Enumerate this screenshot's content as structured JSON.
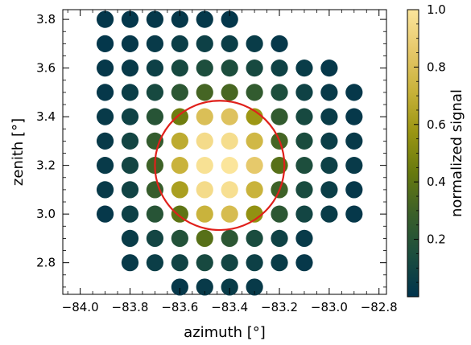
{
  "chart_data": {
    "type": "scatter",
    "xlabel": "azimuth [°]",
    "ylabel": "zenith [°]",
    "xlim": [
      -84.07,
      -82.77
    ],
    "ylim": [
      2.67,
      3.84
    ],
    "xticks": [
      -84.0,
      -83.8,
      -83.6,
      -83.4,
      -83.2,
      -83.0,
      -82.8
    ],
    "xtick_labels": [
      "−84.0",
      "−83.8",
      "−83.6",
      "−83.4",
      "−83.2",
      "−83.0",
      "−82.8"
    ],
    "yticks": [
      2.8,
      3.0,
      3.2,
      3.4,
      3.6,
      3.8
    ],
    "ytick_labels": [
      "2.8",
      "3.0",
      "3.2",
      "3.4",
      "3.6",
      "3.8"
    ],
    "grid": false,
    "colorbar": {
      "label": "normalized signal",
      "range": [
        0.0,
        1.0
      ],
      "ticks": [
        0.2,
        0.4,
        0.6,
        0.8,
        1.0
      ],
      "tick_labels": [
        "0.2",
        "0.4",
        "0.6",
        "0.8",
        "1.0"
      ],
      "colors": [
        "#00334d",
        "#1b4d3e",
        "#3a5f2a",
        "#66790f",
        "#9a9512",
        "#c8b23a",
        "#e6c86a",
        "#fbe59b"
      ]
    },
    "rows": [
      {
        "y": 3.8,
        "x_start": -83.9,
        "values": [
          0.02,
          0.02,
          0.03,
          0.03,
          0.03,
          0.02
        ]
      },
      {
        "y": 3.7,
        "x_start": -83.9,
        "values": [
          0.02,
          0.03,
          0.04,
          0.06,
          0.07,
          0.06,
          0.05,
          0.03
        ]
      },
      {
        "y": 3.6,
        "x_start": -83.9,
        "values": [
          0.03,
          0.04,
          0.07,
          0.12,
          0.15,
          0.15,
          0.12,
          0.08,
          0.05,
          0.03
        ]
      },
      {
        "y": 3.5,
        "x_start": -83.9,
        "values": [
          0.03,
          0.06,
          0.12,
          0.22,
          0.32,
          0.33,
          0.25,
          0.15,
          0.08,
          0.04,
          0.03
        ]
      },
      {
        "y": 3.4,
        "x_start": -83.9,
        "values": [
          0.04,
          0.08,
          0.2,
          0.45,
          0.8,
          0.82,
          0.58,
          0.25,
          0.12,
          0.05,
          0.03
        ]
      },
      {
        "y": 3.3,
        "x_start": -83.9,
        "values": [
          0.04,
          0.1,
          0.26,
          0.68,
          0.95,
          0.96,
          0.75,
          0.32,
          0.14,
          0.06,
          0.04
        ]
      },
      {
        "y": 3.2,
        "x_start": -83.9,
        "values": [
          0.04,
          0.1,
          0.3,
          0.72,
          0.98,
          1.0,
          0.86,
          0.38,
          0.15,
          0.07,
          0.04
        ]
      },
      {
        "y": 3.1,
        "x_start": -83.9,
        "values": [
          0.04,
          0.09,
          0.27,
          0.62,
          0.95,
          0.97,
          0.72,
          0.3,
          0.13,
          0.06,
          0.03
        ]
      },
      {
        "y": 3.0,
        "x_start": -83.9,
        "values": [
          0.03,
          0.07,
          0.2,
          0.4,
          0.72,
          0.78,
          0.55,
          0.22,
          0.1,
          0.05,
          0.03
        ]
      },
      {
        "y": 2.9,
        "x_start": -83.8,
        "values": [
          0.05,
          0.1,
          0.18,
          0.38,
          0.22,
          0.14,
          0.08,
          0.04
        ]
      },
      {
        "y": 2.8,
        "x_start": -83.8,
        "values": [
          0.04,
          0.06,
          0.09,
          0.12,
          0.1,
          0.07,
          0.05,
          0.03
        ]
      },
      {
        "y": 2.7,
        "x_start": -83.6,
        "values": [
          0.03,
          0.04,
          0.05,
          0.04
        ]
      }
    ],
    "circle": {
      "center": [
        -83.44,
        3.2
      ],
      "radius_x": 0.26,
      "color": "#e0201b"
    }
  }
}
